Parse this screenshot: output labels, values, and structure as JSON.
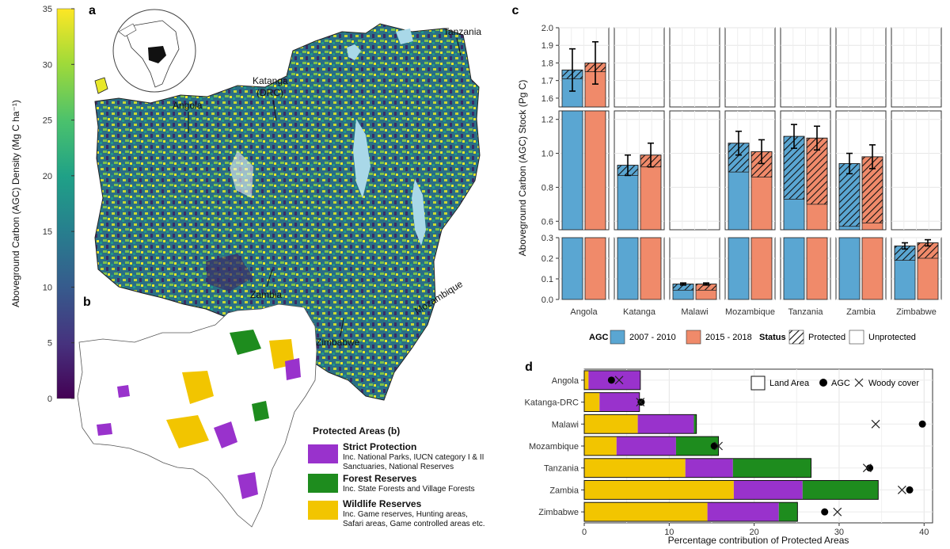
{
  "panel_a": {
    "letter": "a",
    "colorbar": {
      "title": "Aboveground Carbon (AGC) Density (Mg C ha⁻¹)",
      "ticks": [
        "0",
        "5",
        "10",
        "15",
        "20",
        "25",
        "30",
        "35"
      ],
      "range": [
        0,
        35
      ]
    },
    "labels": {
      "tanzania": "Tanzania",
      "katanga_1": "Katanga",
      "katanga_2": "(DRC)",
      "angola": "Angola",
      "zambia": "Zambia",
      "zimbabwe": "Zimbabwe",
      "mozambique": "Mozambique"
    }
  },
  "panel_b": {
    "letter": "b",
    "legend": {
      "title": "Protected Areas (b)",
      "items": [
        {
          "name": "Strict Protection",
          "desc1": "Inc. National Parks, IUCN category I & II",
          "desc2": "Sanctuaries, National Reserves",
          "desc3": "",
          "color": "#9932cc"
        },
        {
          "name": "Forest Reserves",
          "desc1": "Inc. State Forests and Village Forests",
          "desc2": "",
          "desc3": "",
          "color": "#1e8c1e"
        },
        {
          "name": "Wildlife Reserves",
          "desc1": "Inc. Game reserves, Hunting areas,",
          "desc2": "Safari areas, Game controlled areas etc.",
          "desc3": "",
          "color": "#f2c500"
        }
      ]
    }
  },
  "chart_data": [
    {
      "panel": "c",
      "type": "bar",
      "ylabel": "Aboveground Carbon (AGC) Stock (Pg C)",
      "categories": [
        "Angola",
        "Katanga",
        "Malawi",
        "Mozambique",
        "Tanzania",
        "Zambia",
        "Zimbabwe"
      ],
      "series": [
        {
          "name": "2007 - 2010",
          "color": "#5aa6d2",
          "total": [
            1.76,
            0.93,
            0.075,
            1.06,
            1.1,
            0.94,
            0.26
          ],
          "unprotected": [
            1.71,
            0.87,
            0.045,
            0.89,
            0.73,
            0.57,
            0.19
          ],
          "error": [
            0.12,
            0.06,
            0.005,
            0.07,
            0.07,
            0.06,
            0.015
          ]
        },
        {
          "name": "2015 - 2018",
          "color": "#f08a6a",
          "total": [
            1.8,
            0.99,
            0.075,
            1.01,
            1.09,
            0.98,
            0.275
          ],
          "unprotected": [
            1.75,
            0.92,
            0.045,
            0.86,
            0.7,
            0.59,
            0.2
          ],
          "error": [
            0.12,
            0.07,
            0.005,
            0.07,
            0.07,
            0.07,
            0.015
          ]
        }
      ],
      "y_breaks": [
        [
          0,
          0.3
        ],
        [
          0.55,
          1.25
        ],
        [
          1.55,
          2.0
        ]
      ],
      "yticks": [
        [
          "0.0",
          "0.1",
          "0.2",
          "0.3"
        ],
        [
          "0.6",
          "0.8",
          "1.0",
          "1.2"
        ],
        [
          "1.6",
          "1.7",
          "1.8",
          "1.9",
          "2.0"
        ]
      ],
      "legend": {
        "agc_label": "AGC",
        "status_label": "Status",
        "protected": "Protected",
        "unprotected": "Unprotected"
      }
    },
    {
      "panel": "d",
      "type": "bar",
      "orientation": "horizontal",
      "stacked": true,
      "xlabel": "Percentage contribution of Protected Areas",
      "xlim": [
        0,
        41
      ],
      "xticks": [
        "0",
        "10",
        "20",
        "30",
        "40"
      ],
      "categories": [
        "Angola",
        "Katanga-DRC",
        "Malawi",
        "Mozambique",
        "Tanzania",
        "Zambia",
        "Zimbabwe"
      ],
      "series": [
        {
          "name": "Wildlife Reserves",
          "color": "#f2c500",
          "values": [
            0.5,
            1.8,
            6.3,
            3.8,
            11.9,
            17.6,
            14.5
          ]
        },
        {
          "name": "Strict Protection",
          "color": "#9932cc",
          "values": [
            6.1,
            4.7,
            6.6,
            7.0,
            5.6,
            8.1,
            8.4
          ]
        },
        {
          "name": "Forest Reserves",
          "color": "#1e8c1e",
          "values": [
            0.0,
            0.0,
            0.3,
            5.0,
            9.2,
            8.9,
            2.2
          ]
        }
      ],
      "agc": [
        3.2,
        6.7,
        39.8,
        15.3,
        33.6,
        38.3,
        28.3
      ],
      "woody_cover": [
        4.1,
        6.6,
        34.3,
        15.8,
        33.3,
        37.4,
        29.8
      ],
      "legend": {
        "land_area": "Land Area",
        "agc": "AGC",
        "woody": "Woody cover"
      }
    }
  ]
}
